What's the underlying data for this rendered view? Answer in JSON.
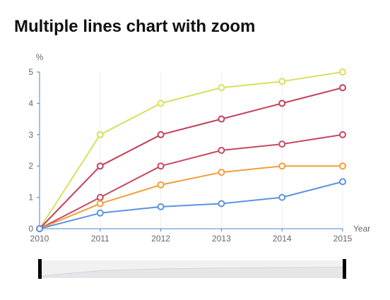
{
  "chart_data": {
    "type": "line",
    "title": "Multiple lines chart with zoom",
    "xlabel": "Year",
    "ylabel": "%",
    "categories": [
      "2010",
      "2011",
      "2012",
      "2013",
      "2014",
      "2015"
    ],
    "y_ticks": [
      "0",
      "1",
      "2",
      "3",
      "4",
      "5"
    ],
    "ylim": [
      0,
      5
    ],
    "grid": "vertical",
    "legend": "none",
    "series": [
      {
        "values": [
          0,
          3,
          4,
          4.5,
          4.7,
          5
        ],
        "color": "#d9df5e"
      },
      {
        "values": [
          0,
          2,
          3,
          3.5,
          4,
          4.5
        ],
        "color": "#c2415b"
      },
      {
        "values": [
          0,
          1,
          2,
          2.5,
          2.7,
          3
        ],
        "color": "#c8485f"
      },
      {
        "values": [
          0,
          0.8,
          1.4,
          1.8,
          2,
          2
        ],
        "color": "#f49d38"
      },
      {
        "values": [
          0,
          0.5,
          0.7,
          0.8,
          1,
          1.5
        ],
        "color": "#5b93e4"
      }
    ],
    "zoom": {
      "start": 0,
      "end": 1
    }
  },
  "colors": {
    "axis": "#4a86c6",
    "grid": "#eeeeee",
    "slider_handle": "#000000",
    "slider_track": "#f1f1f1"
  }
}
